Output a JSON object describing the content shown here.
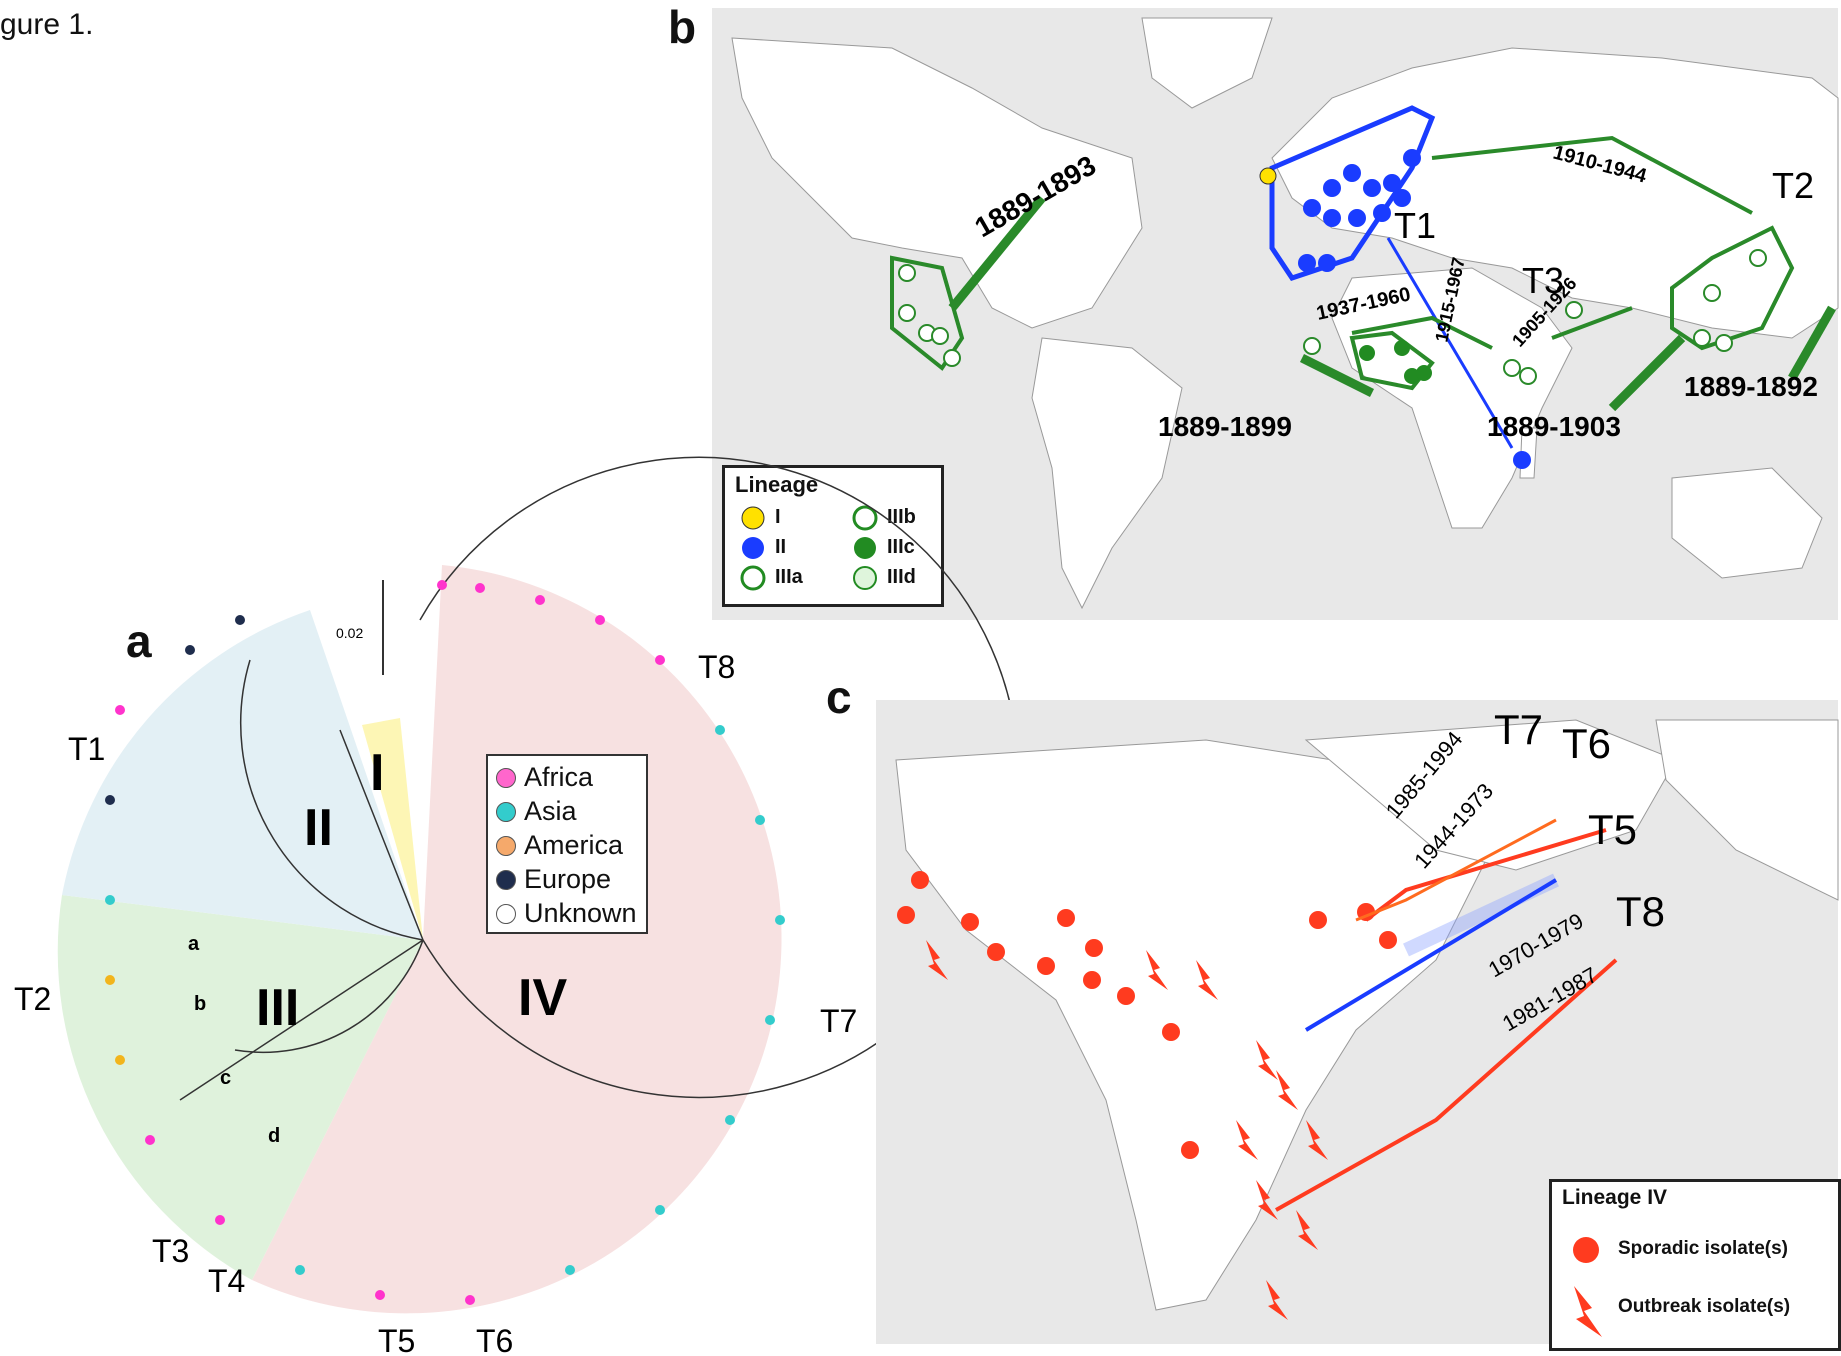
{
  "figure_caption": "gure 1.",
  "panel_a": {
    "letter": "a",
    "scale_label": "0.02",
    "lineages": [
      "I",
      "II",
      "III",
      "IV"
    ],
    "sublineages": [
      "a",
      "b",
      "c",
      "d"
    ],
    "transmissions": [
      "T1",
      "T2",
      "T3",
      "T4",
      "T5",
      "T6",
      "T7",
      "T8"
    ],
    "legend": [
      {
        "label": "Africa",
        "color": "#ff66cc"
      },
      {
        "label": "Asia",
        "color": "#33cccc"
      },
      {
        "label": "America",
        "color": "#f5a96b"
      },
      {
        "label": "Europe",
        "color": "#1f2d4d"
      },
      {
        "label": "Unknown",
        "color": "#ffffff"
      }
    ],
    "sector_colors": {
      "I": "#fdf6b5",
      "II": "#e3f0f5",
      "III": "#dff2dc",
      "IV": "#f7e1e1"
    }
  },
  "panel_b": {
    "letter": "b",
    "legend_title": "Lineage",
    "legend": [
      {
        "label": "I",
        "style": "yellow-dot"
      },
      {
        "label": "II",
        "style": "blue-dot"
      },
      {
        "label": "IIIa",
        "style": "checker-green"
      },
      {
        "label": "IIIb",
        "style": "hatched-green"
      },
      {
        "label": "IIIc",
        "style": "solid-green"
      },
      {
        "label": "IIId",
        "style": "light-green"
      }
    ],
    "labels": {
      "t1": "T1",
      "t2": "T2",
      "t3": "T3"
    },
    "dates": {
      "d1": "1889-1893",
      "d2": "1889-1899",
      "d3": "1889-1903",
      "d4": "1889-1892",
      "d5": "1910-1944",
      "d6": "1937-1960",
      "d7": "1915-1967",
      "d8": "1905-1926"
    }
  },
  "panel_c": {
    "letter": "c",
    "legend_title": "Lineage IV",
    "legend": [
      {
        "label": "Sporadic isolate(s)",
        "style": "red-dot"
      },
      {
        "label": "Outbreak isolate(s)",
        "style": "red-bolt"
      }
    ],
    "labels": {
      "t5": "T5",
      "t6": "T6",
      "t7": "T7",
      "t8": "T8"
    },
    "dates": {
      "d1": "1985-1994",
      "d2": "1944-1973",
      "d3": "1970-1979",
      "d4": "1981-1987"
    }
  }
}
